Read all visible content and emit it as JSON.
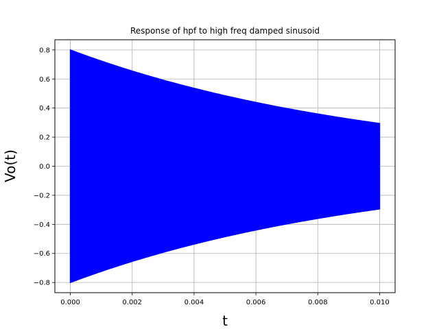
{
  "chart_data": {
    "type": "line",
    "title": "Response of hpf to high freq damped sinusoid",
    "xlabel": "t",
    "ylabel": "Vo(t)",
    "xlim": [
      -0.0005,
      0.0105
    ],
    "ylim": [
      -0.87,
      0.87
    ],
    "grid": true,
    "x_ticks": [
      0.0,
      0.002,
      0.004,
      0.006,
      0.008,
      0.01
    ],
    "x_tick_labels": [
      "0.000",
      "0.002",
      "0.004",
      "0.006",
      "0.008",
      "0.010"
    ],
    "y_ticks": [
      -0.8,
      -0.6,
      -0.4,
      -0.2,
      0.0,
      0.2,
      0.4,
      0.6,
      0.8
    ],
    "y_tick_labels": [
      "−0.8",
      "−0.6",
      "−0.4",
      "−0.2",
      "0.0",
      "0.2",
      "0.4",
      "0.6",
      "0.8"
    ],
    "series": [
      {
        "color": "#0000ff",
        "x_range": [
          0.0,
          0.01
        ],
        "amplitude": 0.8,
        "decay_time_constant": 0.01,
        "envelope_samples": {
          "x": [
            0.0,
            0.002,
            0.004,
            0.006,
            0.008,
            0.01
          ],
          "upper": [
            0.8,
            0.655,
            0.536,
            0.439,
            0.359,
            0.294
          ],
          "lower": [
            -0.8,
            -0.655,
            -0.536,
            -0.439,
            -0.359,
            -0.294
          ]
        }
      }
    ]
  }
}
